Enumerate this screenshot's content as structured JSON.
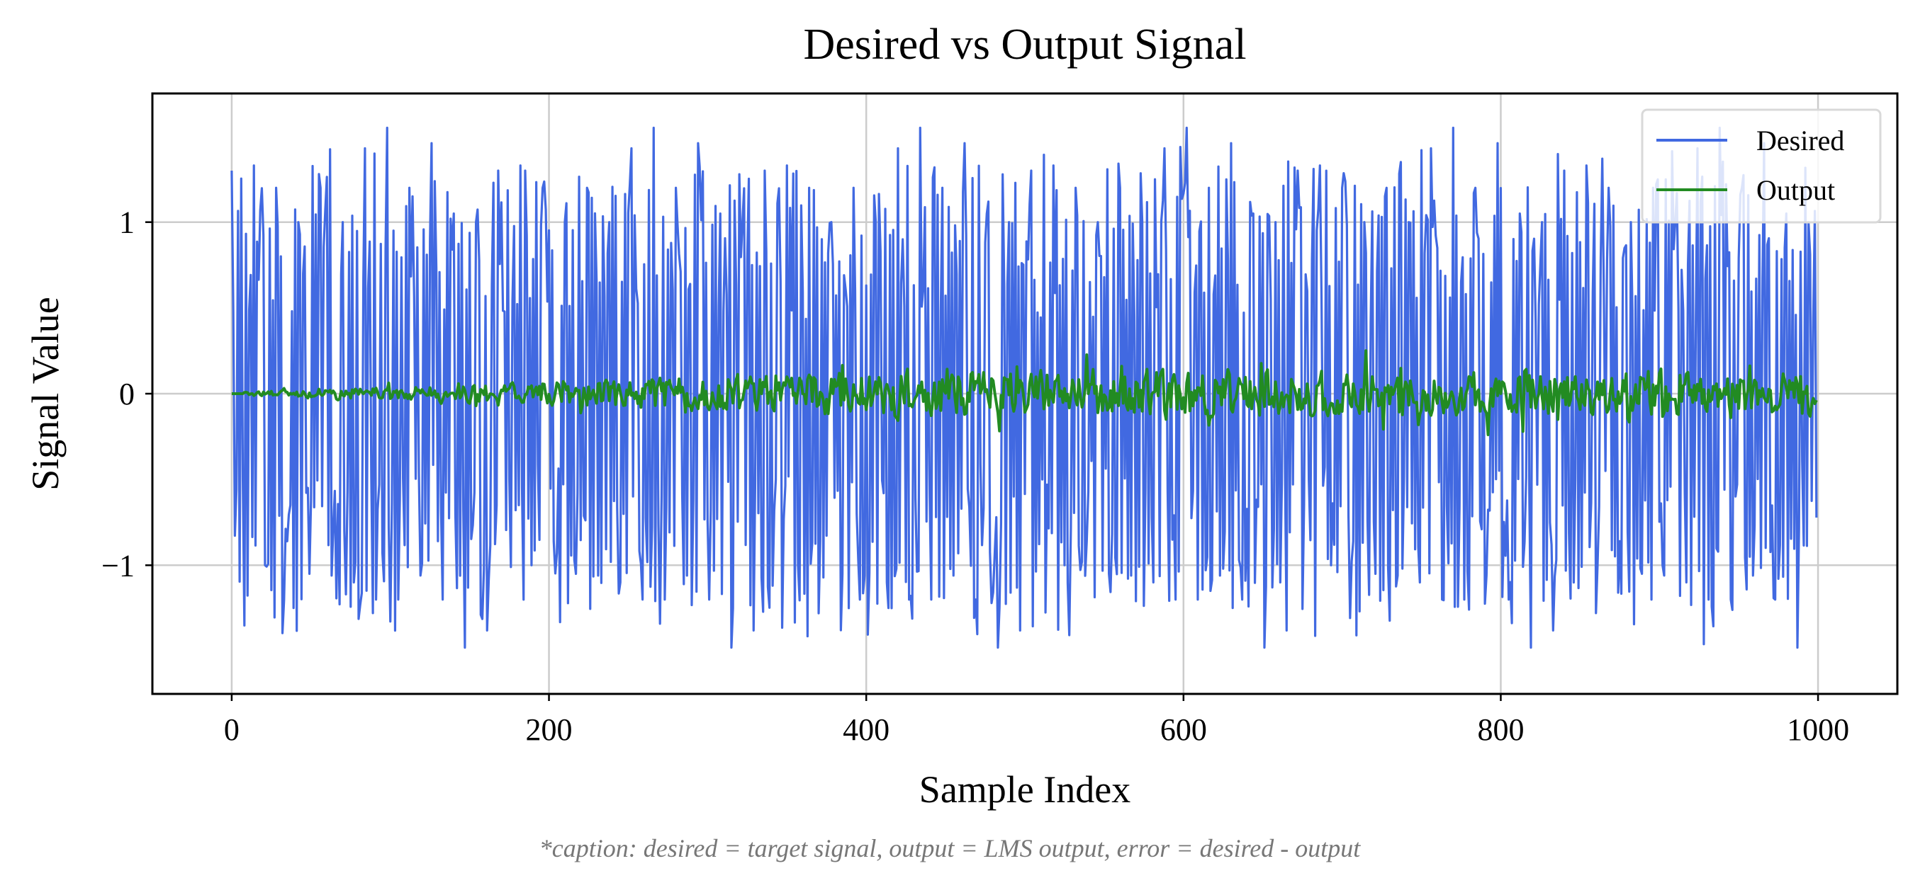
{
  "chart_data": {
    "type": "line",
    "title": "Desired vs Output Signal",
    "xlabel": "Sample Index",
    "ylabel": "Signal Value",
    "caption": "*caption: desired = target signal, output = LMS output, error = desired - output",
    "xlim": [
      -50,
      1050
    ],
    "ylim": [
      -1.75,
      1.75
    ],
    "xticks": [
      0,
      200,
      400,
      600,
      800,
      1000
    ],
    "xtick_labels": [
      "0",
      "200",
      "400",
      "600",
      "800",
      "1000"
    ],
    "yticks": [
      -1,
      0,
      1
    ],
    "ytick_labels": [
      "−1",
      "0",
      "1"
    ],
    "grid": true,
    "legend_position": "top-right",
    "sample_count": 1000,
    "colors": {
      "desired": "#4169e1",
      "output": "#228b22",
      "grid": "#cccccc",
      "caption": "#777777"
    },
    "series": [
      {
        "name": "Desired",
        "color": "#4169e1",
        "x_range": [
          0,
          999
        ],
        "amplitude_range": [
          -1.58,
          1.6
        ],
        "description_values": [
          1.3,
          -0.66,
          0.8,
          -0.87,
          1.04,
          -1.1,
          0.97,
          -0.5,
          0.95,
          -1.17,
          1.16,
          -1.38,
          1.15,
          -1.0,
          1.33,
          -1.38,
          1.26,
          -0.8,
          0.92,
          -1.25,
          1.38,
          -1.0,
          1.3,
          -1.1,
          0.9,
          -1.37,
          1.07,
          -1.58,
          1.2,
          -0.93,
          1.07,
          -1.44,
          1.3,
          -1.0,
          1.17,
          -0.86,
          1.06,
          -1.2,
          1.3,
          -0.96,
          1.14,
          -1.42,
          1.0,
          -1.25,
          1.05,
          -1.47,
          0.96,
          -1.37,
          1.4,
          -1.05,
          0.9,
          -1.2,
          1.1,
          -0.98,
          1.3,
          -1.0,
          1.2,
          -1.3,
          1.3,
          -1.2,
          1.6,
          -1.2,
          1.36,
          -1.06,
          1.2,
          -0.9,
          1.1,
          -1.2,
          1.42,
          -1.1,
          1.0,
          -1.47,
          1.3,
          -1.38,
          0.96,
          -1.56,
          1.3,
          -1.1,
          1.2,
          -1.0,
          1.33,
          -1.3,
          1.06,
          -1.2,
          1.43,
          -1.2,
          1.3,
          -1.06,
          1.16,
          -0.9,
          1.34,
          -1.2,
          1.38,
          -1.47,
          1.33,
          -1.53,
          1.0,
          -1.2,
          1.55,
          -1.1,
          1.1,
          -1.3,
          1.36,
          -1.0,
          1.25,
          -1.2,
          1.2,
          -0.96,
          1.33,
          -1.1,
          1.0,
          -1.25,
          1.2,
          -1.0,
          1.1,
          -1.3,
          1.2,
          -0.9,
          1.36,
          -1.06,
          1.48,
          -1.4,
          1.1,
          -1.3,
          1.2,
          -0.95,
          1.46,
          -1.1,
          1.3,
          -1.3,
          1.0,
          -0.97,
          1.3,
          -1.2,
          1.45,
          -1.0,
          1.1,
          -1.2,
          1.34,
          -1.0,
          1.05,
          -1.26,
          1.44,
          -1.1,
          1.3,
          -1.2,
          1.35,
          -1.48,
          1.16,
          -1.55,
          1.3,
          -1.1,
          1.2,
          -1.45,
          1.0,
          -1.37,
          1.3,
          -1.48,
          1.3,
          -1.2,
          1.2,
          -1.38,
          1.3,
          -1.0,
          1.2,
          -1.2,
          0.76,
          -1.37
        ]
      },
      {
        "name": "Output",
        "color": "#228b22",
        "x_range": [
          0,
          999
        ],
        "amplitude_range": [
          -0.37,
          0.33
        ],
        "description_values": [
          0.0,
          0.0,
          0.0,
          0.01,
          -0.01,
          0.02,
          -0.02,
          0.03,
          -0.03,
          0.04,
          -0.04,
          0.05,
          -0.05,
          0.08,
          -0.08,
          0.14,
          -0.1,
          0.1,
          -0.12,
          0.13,
          -0.1,
          0.12,
          -0.06,
          0.08,
          -0.14,
          0.14,
          -0.1,
          0.22,
          -0.15,
          0.18,
          -0.12,
          0.2,
          -0.15,
          0.18,
          -0.22,
          0.33,
          -0.25,
          0.3,
          -0.2,
          0.25,
          -0.18,
          0.22,
          -0.2,
          0.3,
          -0.22,
          0.22,
          -0.18,
          0.24,
          -0.22,
          0.28,
          -0.25,
          0.2,
          -0.2,
          0.2,
          -0.22,
          0.33,
          -0.35,
          0.22,
          -0.2,
          0.28,
          -0.24,
          0.26,
          -0.2,
          0.22,
          -0.28,
          0.24,
          -0.2,
          0.18,
          -0.22,
          0.2,
          -0.24,
          0.22,
          -0.26,
          0.2,
          -0.2,
          0.24,
          -0.22,
          0.2,
          -0.18,
          0.22,
          -0.25,
          0.12,
          -0.2,
          0.16
        ]
      }
    ]
  }
}
